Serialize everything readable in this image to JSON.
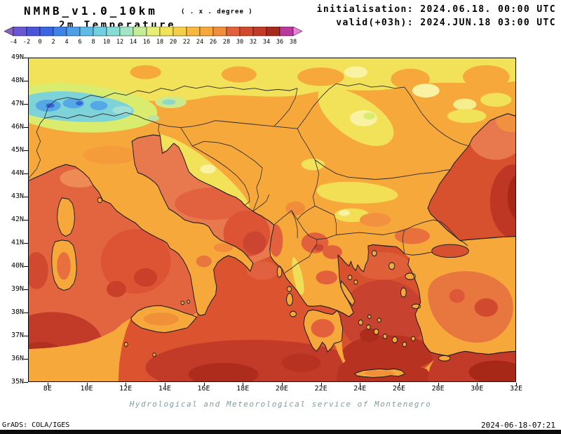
{
  "header": {
    "model_title": "NMMB_v1.0_10km",
    "resolution_note": "( . x . degree )",
    "variable_title": "2m Temperature",
    "initialisation": "initialisation: 2024.06.18. 00:00 UTC",
    "valid": "valid(+03h): 2024.JUN.18 03:00 UTC"
  },
  "colorbar": {
    "range_celsius": [
      -4,
      38
    ],
    "tick_labels": [
      "-4",
      "-2",
      "0",
      "2",
      "4",
      "6",
      "8",
      "10",
      "12",
      "14",
      "16",
      "18",
      "20",
      "22",
      "24",
      "26",
      "28",
      "30",
      "32",
      "34",
      "36",
      "38"
    ],
    "colors": [
      "#8a5fc8",
      "#6858d2",
      "#4a55da",
      "#3b66e2",
      "#3f82e8",
      "#4f9ee8",
      "#5fbae4",
      "#70d0e0",
      "#86dcd6",
      "#a2e6c4",
      "#c6ec96",
      "#e6ee76",
      "#f2e25a",
      "#f6cf4a",
      "#f6b83e",
      "#f6a83b",
      "#f08e3a",
      "#e2613c",
      "#d14a30",
      "#c23a28",
      "#a82a1e",
      "#b83a9e",
      "#ea80da"
    ]
  },
  "map": {
    "lat_ticks": [
      "49N",
      "48N",
      "47N",
      "46N",
      "45N",
      "44N",
      "43N",
      "42N",
      "41N",
      "40N",
      "39N",
      "38N",
      "37N",
      "36N",
      "35N"
    ],
    "lon_ticks": [
      "8E",
      "10E",
      "12E",
      "14E",
      "16E",
      "18E",
      "20E",
      "22E",
      "24E",
      "26E",
      "28E",
      "30E",
      "32E"
    ],
    "extent": {
      "lon_min": 7,
      "lon_max": 32,
      "lat_min": 35,
      "lat_max": 49
    }
  },
  "footer": {
    "credit": "Hydrological and Meteorological service of Montenegro",
    "grads_credit": "GrADS: COLA/IGES",
    "generated": "2024-06-18-07:21"
  }
}
